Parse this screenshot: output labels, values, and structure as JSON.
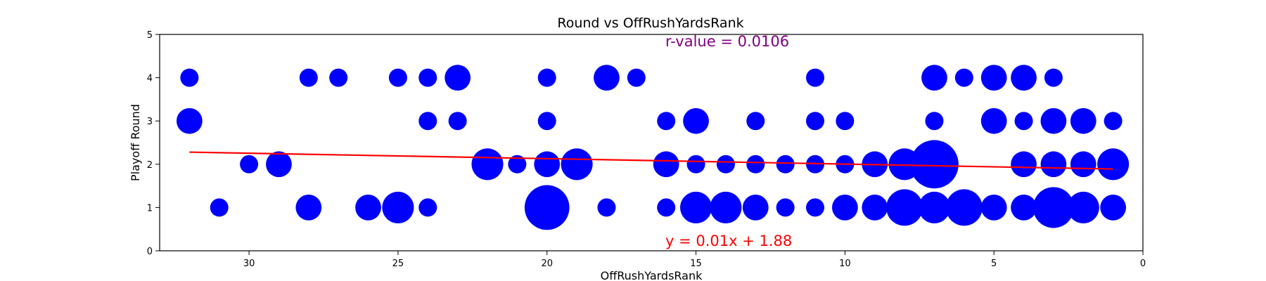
{
  "chart_data": {
    "type": "scatter",
    "title": "Round vs OffRushYardsRank",
    "xlabel": "OffRushYardsRank",
    "ylabel": "Playoff Round",
    "xlim": [
      33,
      0
    ],
    "ylim": [
      0,
      5
    ],
    "x_ticks": [
      30,
      25,
      20,
      15,
      10,
      5,
      0
    ],
    "y_ticks": [
      0,
      1,
      2,
      3,
      4,
      5
    ],
    "grid": false,
    "legend": "none",
    "colors": {
      "points": "#0000ff",
      "fit_line": "#ff0000",
      "r_value_text": "#800080"
    },
    "annotations": {
      "r_value": "r-value = 0.0106",
      "equation": "y = 0.01x + 1.88"
    },
    "fit_line": {
      "x": [
        32,
        1
      ],
      "y": [
        2.28,
        1.89
      ]
    },
    "points": [
      {
        "x": 32,
        "y": 4,
        "size": 1
      },
      {
        "x": 28,
        "y": 4,
        "size": 1
      },
      {
        "x": 27,
        "y": 4,
        "size": 1
      },
      {
        "x": 25,
        "y": 4,
        "size": 1
      },
      {
        "x": 24,
        "y": 4,
        "size": 1
      },
      {
        "x": 23,
        "y": 4,
        "size": 2
      },
      {
        "x": 20,
        "y": 4,
        "size": 1
      },
      {
        "x": 18,
        "y": 4,
        "size": 2
      },
      {
        "x": 17,
        "y": 4,
        "size": 1
      },
      {
        "x": 11,
        "y": 4,
        "size": 1
      },
      {
        "x": 7,
        "y": 4,
        "size": 2
      },
      {
        "x": 6,
        "y": 4,
        "size": 1
      },
      {
        "x": 5,
        "y": 4,
        "size": 2
      },
      {
        "x": 4,
        "y": 4,
        "size": 2
      },
      {
        "x": 3,
        "y": 4,
        "size": 1
      },
      {
        "x": 32,
        "y": 3,
        "size": 2
      },
      {
        "x": 24,
        "y": 3,
        "size": 1
      },
      {
        "x": 23,
        "y": 3,
        "size": 1
      },
      {
        "x": 20,
        "y": 3,
        "size": 1
      },
      {
        "x": 16,
        "y": 3,
        "size": 1
      },
      {
        "x": 15,
        "y": 3,
        "size": 2
      },
      {
        "x": 13,
        "y": 3,
        "size": 1
      },
      {
        "x": 11,
        "y": 3,
        "size": 1
      },
      {
        "x": 10,
        "y": 3,
        "size": 1
      },
      {
        "x": 7,
        "y": 3,
        "size": 1
      },
      {
        "x": 5,
        "y": 3,
        "size": 2
      },
      {
        "x": 4,
        "y": 3,
        "size": 1
      },
      {
        "x": 3,
        "y": 3,
        "size": 2
      },
      {
        "x": 2,
        "y": 3,
        "size": 2
      },
      {
        "x": 1,
        "y": 3,
        "size": 1
      },
      {
        "x": 30,
        "y": 2,
        "size": 1
      },
      {
        "x": 29,
        "y": 2,
        "size": 2
      },
      {
        "x": 22,
        "y": 2,
        "size": 3
      },
      {
        "x": 21,
        "y": 2,
        "size": 1
      },
      {
        "x": 20,
        "y": 2,
        "size": 2
      },
      {
        "x": 19,
        "y": 2,
        "size": 3
      },
      {
        "x": 16,
        "y": 2,
        "size": 2
      },
      {
        "x": 15,
        "y": 2,
        "size": 1
      },
      {
        "x": 14,
        "y": 2,
        "size": 1
      },
      {
        "x": 13,
        "y": 2,
        "size": 1
      },
      {
        "x": 12,
        "y": 2,
        "size": 1
      },
      {
        "x": 11,
        "y": 2,
        "size": 1
      },
      {
        "x": 10,
        "y": 2,
        "size": 1
      },
      {
        "x": 9,
        "y": 2,
        "size": 2
      },
      {
        "x": 8,
        "y": 2,
        "size": 3
      },
      {
        "x": 7,
        "y": 2,
        "size": 7
      },
      {
        "x": 4,
        "y": 2,
        "size": 2
      },
      {
        "x": 3,
        "y": 2,
        "size": 2
      },
      {
        "x": 2,
        "y": 2,
        "size": 2
      },
      {
        "x": 1,
        "y": 2,
        "size": 3
      },
      {
        "x": 31,
        "y": 1,
        "size": 1
      },
      {
        "x": 28,
        "y": 1,
        "size": 2
      },
      {
        "x": 26,
        "y": 1,
        "size": 2
      },
      {
        "x": 25,
        "y": 1,
        "size": 3
      },
      {
        "x": 24,
        "y": 1,
        "size": 1
      },
      {
        "x": 20,
        "y": 1,
        "size": 6
      },
      {
        "x": 18,
        "y": 1,
        "size": 1
      },
      {
        "x": 16,
        "y": 1,
        "size": 1
      },
      {
        "x": 15,
        "y": 1,
        "size": 3
      },
      {
        "x": 14,
        "y": 1,
        "size": 3
      },
      {
        "x": 13,
        "y": 1,
        "size": 2
      },
      {
        "x": 12,
        "y": 1,
        "size": 1
      },
      {
        "x": 11,
        "y": 1,
        "size": 1
      },
      {
        "x": 10,
        "y": 1,
        "size": 2
      },
      {
        "x": 9,
        "y": 1,
        "size": 2
      },
      {
        "x": 8,
        "y": 1,
        "size": 4
      },
      {
        "x": 7,
        "y": 1,
        "size": 3
      },
      {
        "x": 6,
        "y": 1,
        "size": 4
      },
      {
        "x": 5,
        "y": 1,
        "size": 2
      },
      {
        "x": 4,
        "y": 1,
        "size": 2
      },
      {
        "x": 3,
        "y": 1,
        "size": 5
      },
      {
        "x": 2,
        "y": 1,
        "size": 3
      },
      {
        "x": 1,
        "y": 1,
        "size": 2
      }
    ]
  }
}
